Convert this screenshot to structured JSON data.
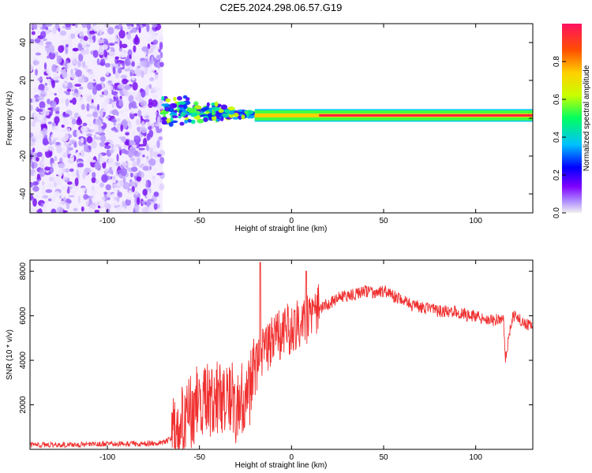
{
  "title": "C2E5.2024.298.06.57.G19",
  "colors": {
    "snr_line": "#f03030",
    "rainbow": [
      "#f0f0f0",
      "#7f00ff",
      "#0000ff",
      "#00c0ff",
      "#00ff60",
      "#c8ff00",
      "#ffd000",
      "#ff5000",
      "#ff1060"
    ]
  },
  "chart_data": [
    {
      "type": "heatmap",
      "name": "spectrogram",
      "xlabel": "Height of straight line (km)",
      "ylabel": "Frequency (Hz)",
      "xlim": [
        -142,
        131
      ],
      "ylim": [
        -50,
        50
      ],
      "xticks": [
        -100,
        -50,
        0,
        50,
        100
      ],
      "yticks": [
        -40,
        -20,
        0,
        20,
        40
      ],
      "colorbar": {
        "label": "Normalized spectral amplitude",
        "range": [
          0,
          1
        ],
        "ticks": [
          0.0,
          0.2,
          0.4,
          0.6,
          0.8
        ]
      },
      "regions": [
        {
          "x_range": [
            -142,
            -70
          ],
          "freq_range": [
            -50,
            50
          ],
          "amplitude": 0.1
        },
        {
          "x_range": [
            -70,
            -20
          ],
          "freq_range": [
            -5,
            12
          ],
          "amplitude": 0.35
        },
        {
          "x_range": [
            -20,
            131
          ],
          "freq_range": [
            -1,
            4
          ],
          "amplitude": 0.9
        }
      ]
    },
    {
      "type": "line",
      "name": "snr",
      "xlabel": "Height of straight line (km)",
      "ylabel": "SNR (10 * v/v)",
      "xlim": [
        -142,
        131
      ],
      "ylim": [
        0,
        8500
      ],
      "xticks": [
        -100,
        -50,
        0,
        50,
        100
      ],
      "yticks": [
        2000,
        4000,
        6000,
        8000
      ],
      "series": [
        {
          "x": [
            -142,
            -120,
            -100,
            -80,
            -70,
            -65,
            -60,
            -55,
            -50,
            -45,
            -40,
            -35,
            -30,
            -25,
            -20,
            -18,
            -15,
            -10,
            -5,
            0,
            5,
            10,
            15,
            20,
            25,
            30,
            35,
            40,
            45,
            50,
            55,
            60,
            65,
            70,
            75,
            80,
            85,
            90,
            95,
            100,
            105,
            110,
            115,
            116,
            120,
            125,
            131
          ],
          "y": [
            200,
            200,
            250,
            250,
            300,
            500,
            1000,
            1500,
            2500,
            2200,
            2500,
            2500,
            2000,
            2300,
            3500,
            4000,
            4500,
            5000,
            5200,
            5500,
            5800,
            6000,
            6300,
            6500,
            6800,
            6900,
            7000,
            7100,
            7000,
            7100,
            6900,
            6700,
            6500,
            6400,
            6300,
            6200,
            6200,
            6200,
            6000,
            6000,
            5900,
            5800,
            5900,
            4000,
            6000,
            5800,
            5500
          ]
        }
      ]
    }
  ]
}
